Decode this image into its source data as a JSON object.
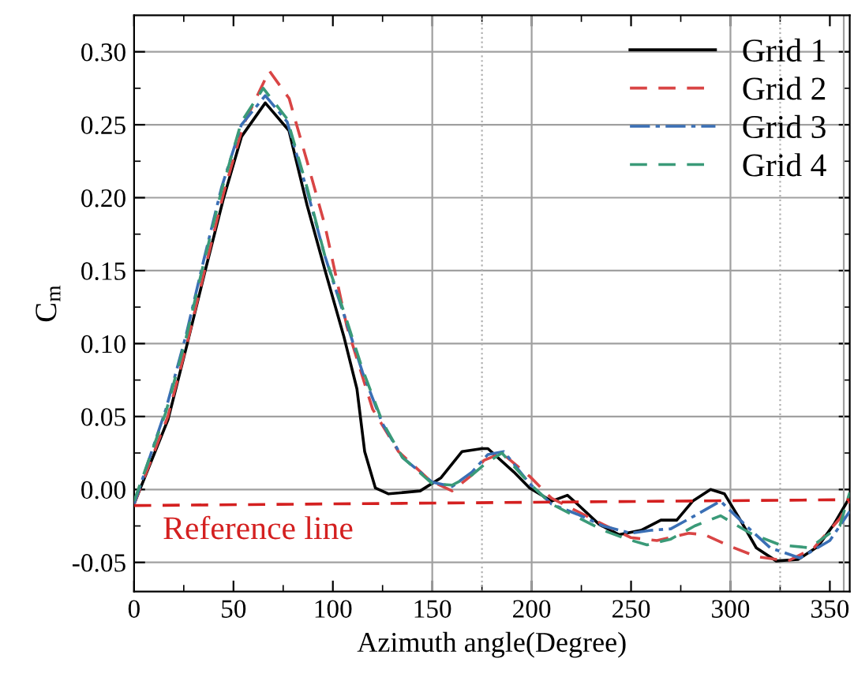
{
  "chart_data": {
    "type": "line",
    "xlabel": "Azimuth angle(Degree)",
    "ylabel": "C$_{m}$",
    "xlim": [
      0,
      360
    ],
    "ylim": [
      -0.07,
      0.325
    ],
    "xticks": [
      0,
      50,
      100,
      150,
      200,
      250,
      300,
      350
    ],
    "yticks": [
      {
        "value": -0.05,
        "label": "-0.05"
      },
      {
        "value": 0,
        "label": "0.00"
      },
      {
        "value": 0.05,
        "label": "0.05"
      },
      {
        "value": 0.1,
        "label": "0.10"
      },
      {
        "value": 0.15,
        "label": "0.15"
      },
      {
        "value": 0.2,
        "label": "0.20"
      },
      {
        "value": 0.25,
        "label": "0.25"
      },
      {
        "value": 0.3,
        "label": "0.30"
      }
    ],
    "grid": "y",
    "legend": "top right",
    "series": [
      {
        "name": "Grid 1",
        "color": "#000000",
        "line_style": "solid",
        "x": [
          0,
          17.1,
          26.4,
          35.6,
          44.9,
          54.1,
          66,
          77.9,
          87,
          96.3,
          105.5,
          112.1,
          116,
          121.4,
          128,
          143.9,
          154.4,
          165,
          175,
          178,
          191,
          199,
          210,
          218,
          223,
          234,
          244,
          255,
          265,
          273,
          281,
          290,
          297,
          305,
          313,
          323,
          334,
          344,
          352,
          358,
          360
        ],
        "values": [
          -0.01,
          0.048,
          0.098,
          0.149,
          0.199,
          0.242,
          0.265,
          0.246,
          0.195,
          0.149,
          0.105,
          0.069,
          0.026,
          0.001,
          -0.003,
          -0.001,
          0.008,
          0.026,
          0.028,
          0.028,
          0.012,
          0.001,
          -0.008,
          -0.004,
          -0.01,
          -0.024,
          -0.031,
          -0.028,
          -0.021,
          -0.021,
          -0.008,
          0.0,
          -0.003,
          -0.021,
          -0.04,
          -0.049,
          -0.048,
          -0.039,
          -0.024,
          -0.01,
          -0.005
        ]
      },
      {
        "name": "Grid 2",
        "color": "#d94545",
        "line_style": "dashed",
        "x": [
          0,
          17,
          27,
          36,
          45,
          55,
          68,
          78,
          87,
          96,
          107,
          120,
          133,
          149,
          160,
          170,
          176,
          185,
          199,
          210,
          223,
          236,
          250,
          263,
          279,
          287,
          300,
          313,
          329,
          342,
          355,
          360
        ],
        "values": [
          -0.01,
          0.05,
          0.102,
          0.153,
          0.203,
          0.25,
          0.287,
          0.268,
          0.225,
          0.181,
          0.112,
          0.055,
          0.026,
          0.006,
          -0.001,
          0.01,
          0.02,
          0.025,
          0.009,
          -0.006,
          -0.015,
          -0.024,
          -0.033,
          -0.035,
          -0.03,
          -0.031,
          -0.039,
          -0.046,
          -0.049,
          -0.04,
          -0.02,
          -0.008
        ]
      },
      {
        "name": "Grid 3",
        "color": "#3a6fb5",
        "line_style": "dashdot",
        "x": [
          0,
          16,
          26,
          35,
          44,
          54,
          66,
          77,
          87,
          96,
          106,
          115,
          125,
          135,
          150,
          160,
          170,
          178,
          186,
          199,
          210,
          223,
          236,
          250,
          260,
          270,
          282,
          295,
          308,
          320,
          335,
          350,
          360
        ],
        "values": [
          -0.01,
          0.055,
          0.105,
          0.157,
          0.207,
          0.25,
          0.27,
          0.252,
          0.205,
          0.16,
          0.118,
          0.08,
          0.045,
          0.022,
          0.005,
          0.002,
          0.012,
          0.024,
          0.026,
          0.004,
          -0.01,
          -0.017,
          -0.025,
          -0.03,
          -0.028,
          -0.027,
          -0.018,
          -0.008,
          -0.025,
          -0.04,
          -0.047,
          -0.035,
          -0.015
        ]
      },
      {
        "name": "Grid 4",
        "color": "#3a9a78",
        "line_style": "dashed",
        "x": [
          0,
          16,
          26,
          35,
          44,
          54,
          65,
          77,
          87,
          96,
          106,
          115,
          125,
          135,
          150,
          160,
          170,
          177,
          185,
          199,
          210,
          223,
          236,
          248,
          258,
          270,
          282,
          295,
          310,
          325,
          340,
          355,
          360
        ],
        "values": [
          -0.008,
          0.053,
          0.103,
          0.155,
          0.205,
          0.252,
          0.275,
          0.254,
          0.207,
          0.16,
          0.12,
          0.082,
          0.046,
          0.022,
          0.004,
          0.003,
          0.01,
          0.018,
          0.025,
          0.004,
          -0.01,
          -0.019,
          -0.028,
          -0.034,
          -0.038,
          -0.034,
          -0.025,
          -0.018,
          -0.03,
          -0.038,
          -0.04,
          -0.025,
          -0.002
        ]
      },
      {
        "color": "#d42020",
        "line_style": "dashed",
        "x": [
          0,
          360
        ],
        "values": [
          -0.011,
          -0.007
        ]
      }
    ],
    "annotations": [
      "Reference line"
    ],
    "ref_lines": [
      {
        "axis": "x",
        "value": 150,
        "color": "#a0a0a0",
        "line_style": "solid"
      },
      {
        "axis": "x",
        "value": 175,
        "color": "#b0b0b0",
        "line_style": "dotted"
      },
      {
        "axis": "x",
        "value": 200,
        "color": "#a0a0a0",
        "line_style": "solid"
      },
      {
        "axis": "x",
        "value": 300,
        "color": "#a0a0a0",
        "line_style": "solid"
      },
      {
        "axis": "x",
        "value": 325,
        "color": "#b0b0b0",
        "line_style": "dotted"
      },
      {
        "axis": "x",
        "value": 357,
        "color": "#a0a0a0",
        "line_style": "solid"
      }
    ]
  }
}
